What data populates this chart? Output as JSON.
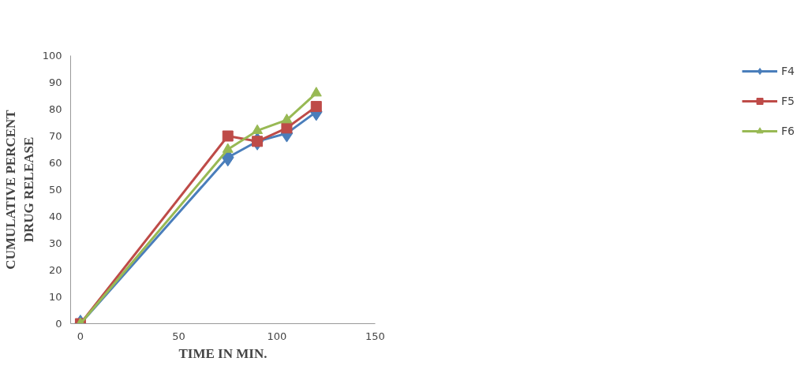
{
  "chart_data": {
    "type": "line",
    "xlabel": "TIME IN MIN.",
    "ylabel": "CUMULATIVE PERCENT\nDRUG RELEASE",
    "x": [
      0,
      75,
      90,
      105,
      120
    ],
    "series": [
      {
        "name": "F4",
        "color": "#4a7ebb",
        "marker": "diamond",
        "values": [
          0,
          62,
          68,
          71,
          79
        ]
      },
      {
        "name": "F5",
        "color": "#be4b48",
        "marker": "square",
        "values": [
          0,
          70,
          68,
          73,
          81
        ]
      },
      {
        "name": "F6",
        "color": "#98b954",
        "marker": "triangle",
        "values": [
          0,
          65,
          72,
          76,
          86
        ]
      }
    ],
    "xlim": [
      -5,
      150
    ],
    "xticks": [
      0,
      50,
      100,
      150
    ],
    "ylim": [
      0,
      100
    ],
    "yticks": [
      0,
      10,
      20,
      30,
      40,
      50,
      60,
      70,
      80,
      90,
      100
    ],
    "grid": false,
    "legend": "right"
  }
}
